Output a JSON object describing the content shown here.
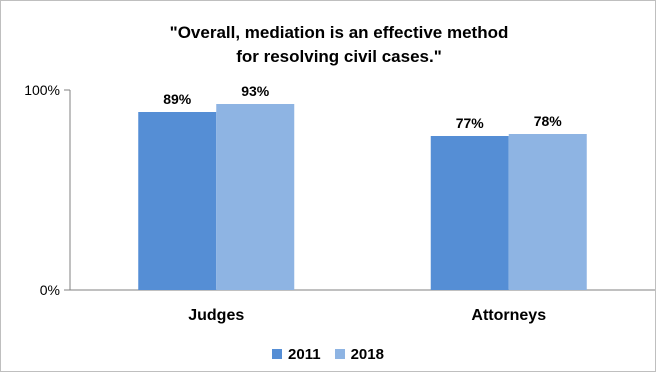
{
  "chart_data": {
    "type": "bar",
    "title_lines": [
      "\"Overall, mediation is an effective method",
      "for resolving civil cases.\""
    ],
    "categories": [
      "Judges",
      "Attorneys"
    ],
    "series": [
      {
        "name": "2011",
        "values": [
          89,
          77
        ],
        "labels": [
          "89%",
          "77%"
        ],
        "color": "#558ed5"
      },
      {
        "name": "2018",
        "values": [
          93,
          78
        ],
        "labels": [
          "93%",
          "78%"
        ],
        "color": "#8eb4e3"
      }
    ],
    "y_ticks": [
      {
        "value": 0,
        "label": "0%"
      },
      {
        "value": 100,
        "label": "100%"
      }
    ],
    "ylim": [
      0,
      100
    ],
    "grid": false,
    "legend": "bottom"
  }
}
